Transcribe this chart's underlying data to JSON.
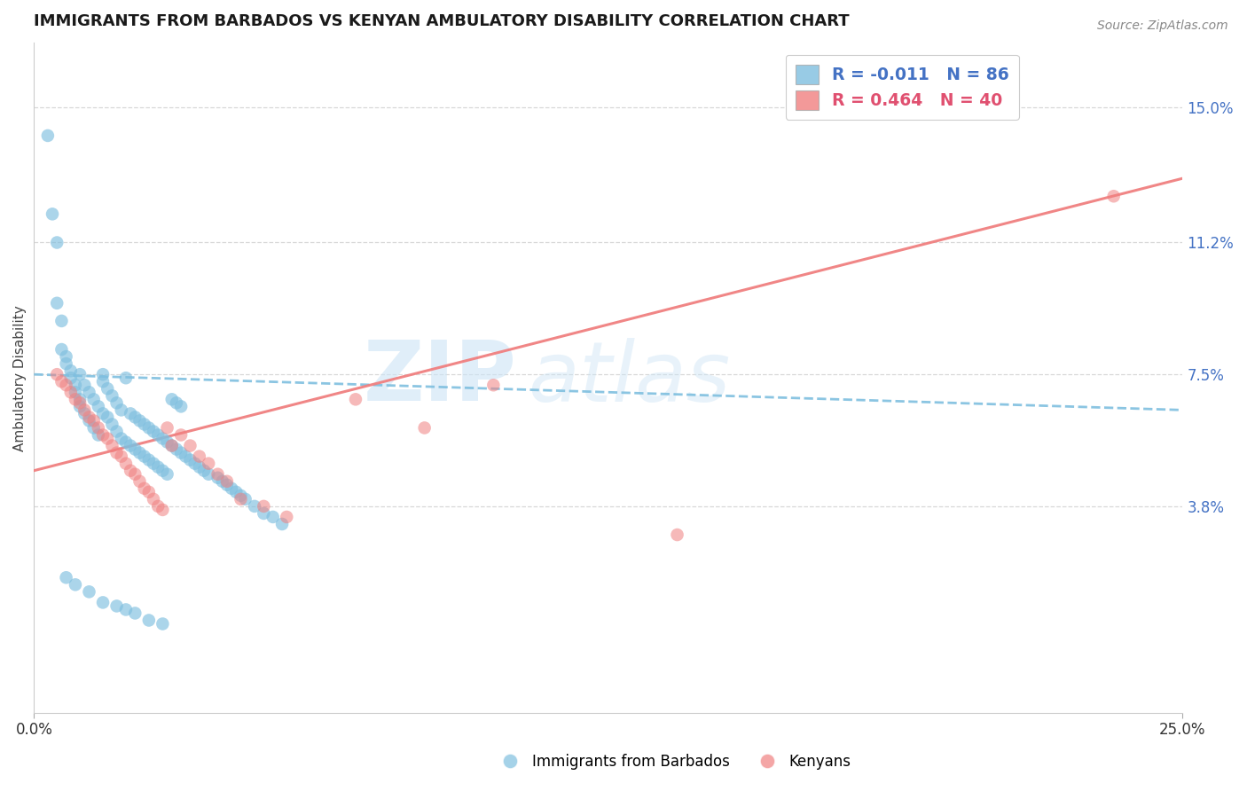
{
  "title": "IMMIGRANTS FROM BARBADOS VS KENYAN AMBULATORY DISABILITY CORRELATION CHART",
  "source_text": "Source: ZipAtlas.com",
  "ylabel": "Ambulatory Disability",
  "xlim": [
    0.0,
    0.25
  ],
  "ylim": [
    -0.02,
    0.168
  ],
  "ytick_labels": [
    "3.8%",
    "7.5%",
    "11.2%",
    "15.0%"
  ],
  "ytick_values": [
    0.038,
    0.075,
    0.112,
    0.15
  ],
  "legend_r_blue": "R = -0.011",
  "legend_n_blue": "N = 86",
  "legend_r_pink": "R = 0.464",
  "legend_n_pink": "N = 40",
  "blue_color": "#7fbfdf",
  "pink_color": "#f08080",
  "watermark_zip": "ZIP",
  "watermark_atlas": "atlas",
  "blue_trend_x": [
    0.0,
    0.25
  ],
  "blue_trend_y": [
    0.075,
    0.065
  ],
  "pink_trend_x": [
    0.0,
    0.25
  ],
  "pink_trend_y": [
    0.048,
    0.13
  ],
  "background_color": "#ffffff",
  "grid_color": "#d8d8d8",
  "title_color": "#1a1a1a",
  "axis_label_color": "#444444",
  "tick_color_blue": "#4472c4",
  "tick_color_pink": "#e05070",
  "blue_scatter_x": [
    0.003,
    0.004,
    0.005,
    0.005,
    0.006,
    0.006,
    0.007,
    0.007,
    0.008,
    0.008,
    0.009,
    0.009,
    0.01,
    0.01,
    0.01,
    0.011,
    0.011,
    0.012,
    0.012,
    0.013,
    0.013,
    0.014,
    0.014,
    0.015,
    0.015,
    0.015,
    0.016,
    0.016,
    0.017,
    0.017,
    0.018,
    0.018,
    0.019,
    0.019,
    0.02,
    0.02,
    0.021,
    0.021,
    0.022,
    0.022,
    0.023,
    0.023,
    0.024,
    0.024,
    0.025,
    0.025,
    0.026,
    0.026,
    0.027,
    0.027,
    0.028,
    0.028,
    0.029,
    0.029,
    0.03,
    0.03,
    0.031,
    0.031,
    0.032,
    0.032,
    0.033,
    0.034,
    0.035,
    0.036,
    0.037,
    0.038,
    0.04,
    0.041,
    0.042,
    0.043,
    0.044,
    0.045,
    0.046,
    0.048,
    0.05,
    0.052,
    0.054,
    0.007,
    0.009,
    0.012,
    0.015,
    0.018,
    0.02,
    0.022,
    0.025,
    0.028
  ],
  "blue_scatter_y": [
    0.142,
    0.12,
    0.112,
    0.095,
    0.09,
    0.082,
    0.08,
    0.078,
    0.076,
    0.074,
    0.072,
    0.07,
    0.068,
    0.066,
    0.075,
    0.064,
    0.072,
    0.062,
    0.07,
    0.06,
    0.068,
    0.058,
    0.066,
    0.075,
    0.064,
    0.073,
    0.063,
    0.071,
    0.061,
    0.069,
    0.059,
    0.067,
    0.057,
    0.065,
    0.074,
    0.056,
    0.064,
    0.055,
    0.063,
    0.054,
    0.062,
    0.053,
    0.061,
    0.052,
    0.06,
    0.051,
    0.059,
    0.05,
    0.058,
    0.049,
    0.057,
    0.048,
    0.056,
    0.047,
    0.055,
    0.068,
    0.054,
    0.067,
    0.053,
    0.066,
    0.052,
    0.051,
    0.05,
    0.049,
    0.048,
    0.047,
    0.046,
    0.045,
    0.044,
    0.043,
    0.042,
    0.041,
    0.04,
    0.038,
    0.036,
    0.035,
    0.033,
    0.018,
    0.016,
    0.014,
    0.011,
    0.01,
    0.009,
    0.008,
    0.006,
    0.005
  ],
  "pink_scatter_x": [
    0.005,
    0.006,
    0.007,
    0.008,
    0.009,
    0.01,
    0.011,
    0.012,
    0.013,
    0.014,
    0.015,
    0.016,
    0.017,
    0.018,
    0.019,
    0.02,
    0.021,
    0.022,
    0.023,
    0.024,
    0.025,
    0.026,
    0.027,
    0.028,
    0.029,
    0.03,
    0.032,
    0.034,
    0.036,
    0.038,
    0.04,
    0.042,
    0.045,
    0.05,
    0.055,
    0.07,
    0.085,
    0.1,
    0.14,
    0.235
  ],
  "pink_scatter_y": [
    0.075,
    0.073,
    0.072,
    0.07,
    0.068,
    0.067,
    0.065,
    0.063,
    0.062,
    0.06,
    0.058,
    0.057,
    0.055,
    0.053,
    0.052,
    0.05,
    0.048,
    0.047,
    0.045,
    0.043,
    0.042,
    0.04,
    0.038,
    0.037,
    0.06,
    0.055,
    0.058,
    0.055,
    0.052,
    0.05,
    0.047,
    0.045,
    0.04,
    0.038,
    0.035,
    0.068,
    0.06,
    0.072,
    0.03,
    0.125
  ]
}
